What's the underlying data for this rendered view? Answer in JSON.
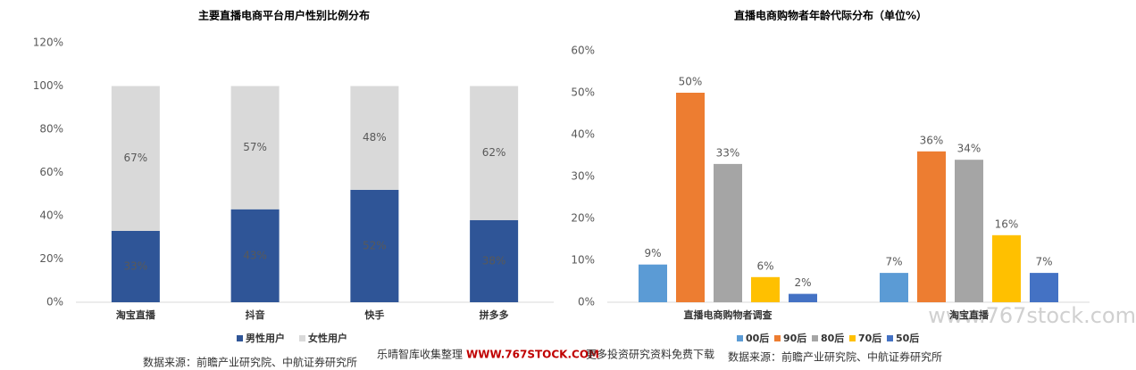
{
  "chart_data": [
    {
      "type": "bar",
      "stacked": true,
      "title": "主要直播电商平台用户性别比例分布",
      "categories": [
        "淘宝直播",
        "抖音",
        "快手",
        "拼多多"
      ],
      "series": [
        {
          "name": "男性用户",
          "color": "#2f5597",
          "values": [
            33,
            43,
            52,
            38
          ],
          "value_labels": [
            "33%",
            "43%",
            "52%",
            "38%"
          ]
        },
        {
          "name": "女性用户",
          "color": "#d9d9d9",
          "values": [
            67,
            57,
            48,
            62
          ],
          "value_labels": [
            "67%",
            "57%",
            "48%",
            "62%"
          ]
        }
      ],
      "ylim": [
        0,
        120
      ],
      "yticks": [
        {
          "value": 0,
          "label": "0%"
        },
        {
          "value": 20,
          "label": "20%"
        },
        {
          "value": 40,
          "label": "40%"
        },
        {
          "value": 60,
          "label": "60%"
        },
        {
          "value": 80,
          "label": "80%"
        },
        {
          "value": 100,
          "label": "100%"
        },
        {
          "value": 120,
          "label": "120%"
        }
      ],
      "grid": false,
      "legend": "bottom"
    },
    {
      "type": "bar",
      "stacked": false,
      "title": "直播电商购物者年龄代际分布（单位%）",
      "categories": [
        "直播电商购物者调查",
        "淘宝直播"
      ],
      "series": [
        {
          "name": "00后",
          "color": "#5b9bd5",
          "values": [
            9,
            7
          ],
          "value_labels": [
            "9%",
            "7%"
          ]
        },
        {
          "name": "90后",
          "color": "#ed7d31",
          "values": [
            50,
            36
          ],
          "value_labels": [
            "50%",
            "36%"
          ]
        },
        {
          "name": "80后",
          "color": "#a5a5a5",
          "values": [
            33,
            34
          ],
          "value_labels": [
            "33%",
            "34%"
          ]
        },
        {
          "name": "70后",
          "color": "#ffc000",
          "values": [
            6,
            16
          ],
          "value_labels": [
            "6%",
            "16%"
          ]
        },
        {
          "name": "50后",
          "color": "#4472c4",
          "values": [
            2,
            7
          ],
          "value_labels": [
            "2%",
            "7%"
          ]
        }
      ],
      "ylim": [
        0,
        60
      ],
      "yticks": [
        {
          "value": 0,
          "label": "0%"
        },
        {
          "value": 10,
          "label": "10%"
        },
        {
          "value": 20,
          "label": "20%"
        },
        {
          "value": 30,
          "label": "30%"
        },
        {
          "value": 40,
          "label": "40%"
        },
        {
          "value": 50,
          "label": "50%"
        },
        {
          "value": 60,
          "label": "60%"
        }
      ],
      "grid": false,
      "legend": "bottom"
    }
  ],
  "sources": [
    "数据来源：前瞻产业研究院、中航证券研究所",
    "数据来源：前瞻产业研究院、中航证券研究所"
  ],
  "watermark": {
    "left": "乐晴智库收集整理",
    "url": "WWW.767STOCK.COM",
    "right": "更多投资研究资料免费下载",
    "corner": "www.767stock.com"
  }
}
